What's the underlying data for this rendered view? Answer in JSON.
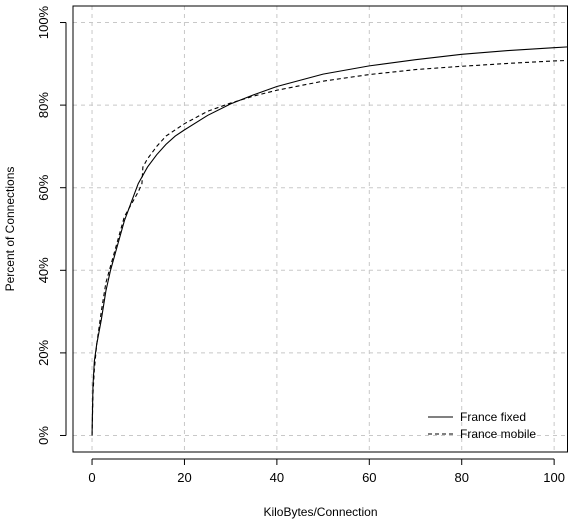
{
  "chart_data": {
    "type": "line",
    "title": "",
    "xlabel": "KiloBytes/Connection",
    "ylabel": "Percent of Connections",
    "xlim": [
      0,
      103
    ],
    "ylim": [
      0,
      100
    ],
    "x_ticks": [
      0,
      20,
      40,
      60,
      80,
      100
    ],
    "x_tick_labels": [
      "0",
      "20",
      "40",
      "60",
      "80",
      "100"
    ],
    "y_ticks": [
      0,
      20,
      40,
      60,
      80,
      100
    ],
    "y_tick_labels": [
      "0%",
      "20%",
      "40%",
      "60%",
      "80%",
      "100%"
    ],
    "grid": true,
    "legend_position": "bottom-right",
    "series": [
      {
        "name": "France fixed",
        "line_style": "solid",
        "color": "#000000",
        "x": [
          0,
          0.2,
          0.5,
          1,
          2,
          3,
          4,
          5,
          6,
          7,
          8,
          9,
          10,
          12,
          14,
          16,
          18,
          20,
          25,
          30,
          35,
          40,
          50,
          60,
          70,
          80,
          90,
          100,
          103
        ],
        "y": [
          0,
          12,
          18,
          22,
          28,
          35,
          40,
          44,
          48,
          52,
          55,
          58,
          61,
          65,
          68,
          70.5,
          72.5,
          74,
          77.5,
          80.3,
          82.5,
          84.5,
          87.5,
          89.5,
          91,
          92.3,
          93.2,
          93.9,
          94.1
        ]
      },
      {
        "name": "France mobile",
        "line_style": "dashed",
        "color": "#000000",
        "x": [
          0,
          0.2,
          0.5,
          1,
          2,
          3,
          4,
          5,
          6,
          7,
          8,
          9,
          10,
          10.8,
          11,
          12,
          14,
          16,
          18,
          20,
          25,
          30,
          35,
          40,
          50,
          60,
          70,
          80,
          90,
          100,
          103
        ],
        "y": [
          0,
          10,
          16,
          22,
          30,
          37,
          41,
          45,
          49,
          53,
          55,
          57,
          59,
          61,
          65,
          67,
          70,
          72.5,
          74,
          75.5,
          78.5,
          80.5,
          82.2,
          83.6,
          85.8,
          87.4,
          88.6,
          89.4,
          90.1,
          90.7,
          90.8
        ]
      }
    ]
  }
}
